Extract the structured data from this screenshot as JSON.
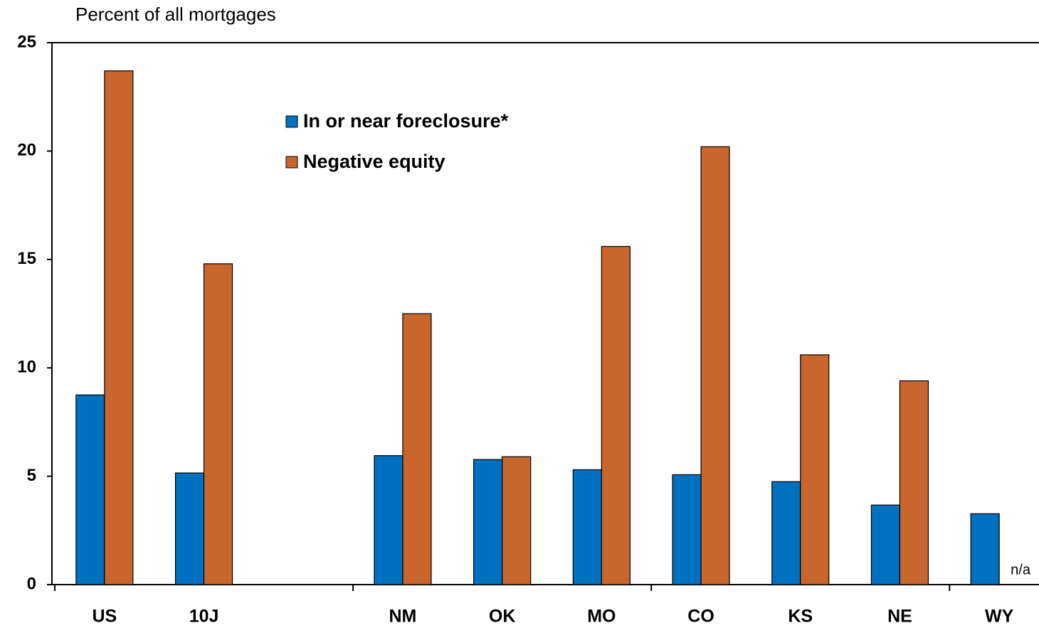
{
  "chart_data": {
    "type": "bar",
    "y_axis_label": "Percent of all mortgages",
    "categories": [
      "US",
      "10J",
      null,
      "NM",
      "OK",
      "MO",
      "CO",
      "KS",
      "NE",
      "WY"
    ],
    "series": [
      {
        "name": "In or near foreclosure*",
        "color": "#0070c0",
        "values": [
          8.75,
          5.15,
          null,
          5.95,
          5.77,
          5.3,
          5.07,
          4.75,
          3.67,
          3.27
        ]
      },
      {
        "name": "Negative equity",
        "color": "#c8662e",
        "values": [
          23.7,
          14.8,
          null,
          12.5,
          5.9,
          15.6,
          20.2,
          10.6,
          9.4,
          null
        ]
      }
    ],
    "missing_label": "n/a",
    "ylim": [
      0,
      25
    ],
    "yticks": [
      0,
      5,
      10,
      15,
      20,
      25
    ],
    "grid": false
  }
}
